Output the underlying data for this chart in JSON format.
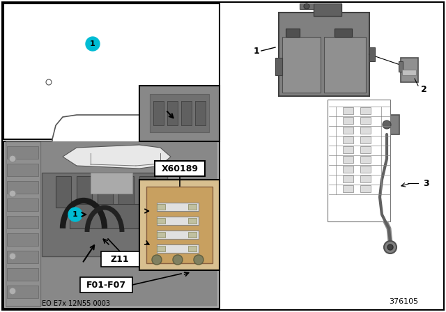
{
  "bg_color": "#ffffff",
  "border_color": "#000000",
  "teal_color": "#00bcd4",
  "gray_bg": "#d0d0d0",
  "dark_gray": "#505050",
  "light_gray": "#c0c0c0",
  "footer_text": "EO E7x 12N55 0003",
  "part_number": "376105",
  "label_z11": "Z11",
  "label_f01_f07": "F01-F07",
  "label_x60189": "X60189",
  "label_1": "1",
  "label_2": "2",
  "label_3": "3"
}
